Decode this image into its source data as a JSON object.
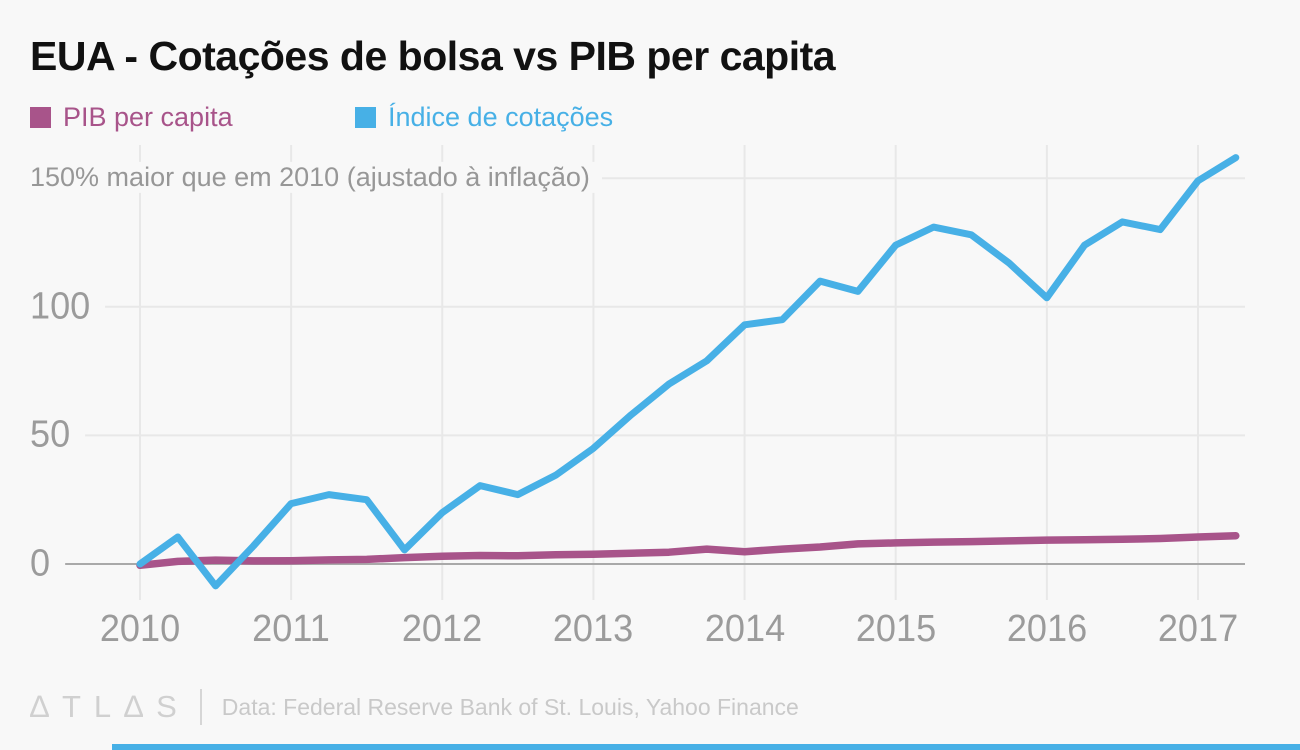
{
  "title": "EUA - Cotações de bolsa vs PIB per capita",
  "legend": {
    "items": [
      {
        "label": "PIB per capita",
        "color": "#a8548a"
      },
      {
        "label": "Índice de cotações",
        "color": "#47b0e6"
      }
    ]
  },
  "y_axis": {
    "top_label": "150% maior que em 2010 (ajustado à inflação)",
    "ticks": [
      {
        "label": "100",
        "value": 100
      },
      {
        "label": "50",
        "value": 50
      },
      {
        "label": "0",
        "value": 0
      }
    ]
  },
  "x_axis": {
    "ticks": [
      {
        "label": "2010",
        "value": 2010
      },
      {
        "label": "2011",
        "value": 2011
      },
      {
        "label": "2012",
        "value": 2012
      },
      {
        "label": "2013",
        "value": 2013
      },
      {
        "label": "2014",
        "value": 2014
      },
      {
        "label": "2015",
        "value": 2015
      },
      {
        "label": "2016",
        "value": 2016
      },
      {
        "label": "2017",
        "value": 2017
      }
    ]
  },
  "footer": {
    "logo": "∆TL∆S",
    "source": "Data: Federal Reserve Bank of St. Louis, Yahoo Finance"
  },
  "accent_color": "#47b0e6",
  "chart_data": {
    "type": "line",
    "title": "EUA - Cotações de bolsa vs PIB per capita",
    "subtitle": "150% maior que em 2010 (ajustado à inflação)",
    "unit": "% change vs 2010, inflation adjusted",
    "x_start": 2010,
    "x_step": 0.25,
    "x_range": [
      2010,
      2017.25
    ],
    "ylim": [
      -15,
      165
    ],
    "gridlines": {
      "horizontal": [
        0,
        50,
        100,
        150
      ],
      "vertical_years": [
        2010,
        2011,
        2012,
        2013,
        2014,
        2015,
        2016,
        2017
      ]
    },
    "legend_position": "top-left",
    "series": [
      {
        "name": "PIB per capita",
        "color": "#a8548a",
        "values": [
          -0.5,
          1,
          1.5,
          1.2,
          1.3,
          1.6,
          1.8,
          2.5,
          3,
          3.3,
          3.2,
          3.6,
          3.8,
          4.2,
          4.6,
          5.8,
          4.8,
          5.8,
          6.6,
          7.8,
          8.2,
          8.5,
          8.7,
          9,
          9.3,
          9.4,
          9.6,
          9.9,
          10.5,
          11
        ]
      },
      {
        "name": "Índice de cotações",
        "color": "#47b0e6",
        "values": [
          0,
          10.5,
          -8.5,
          7,
          23.5,
          27,
          25,
          5.5,
          20,
          30.5,
          27,
          34.5,
          45,
          58,
          70,
          79,
          93,
          95,
          110,
          106,
          124,
          131,
          128,
          117,
          103.5,
          124,
          133,
          130,
          149,
          158
        ]
      }
    ],
    "source": "Data: Federal Reserve Bank of St. Louis, Yahoo Finance"
  }
}
